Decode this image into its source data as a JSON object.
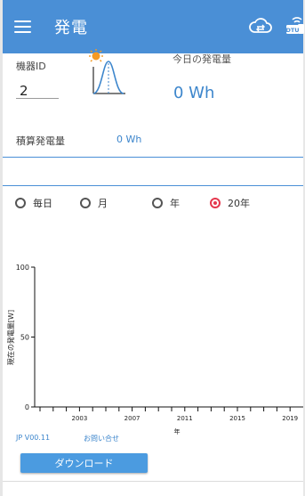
{
  "appbar": {
    "title": "発電",
    "menu_icon": "hamburger-menu-icon",
    "cloud_icon": "cloud-sync-icon",
    "dtu_icon": "dtu-wifi-icon",
    "dtu_text": "DTU",
    "color": "#4a8fd6"
  },
  "device": {
    "label": "機器ID",
    "value": "2"
  },
  "solar_icon": "solar-curve-icon",
  "today": {
    "label": "今日の発電量",
    "value": "0 Wh"
  },
  "total": {
    "label": "積算発電量",
    "value": "0 Wh"
  },
  "period": {
    "options": [
      "毎日",
      "月",
      "年",
      "20年"
    ],
    "selected": "20年"
  },
  "chart_data": {
    "type": "bar",
    "ylabel": "現在の発電量[W]",
    "xlabel": "年",
    "ylim": [
      0,
      100
    ],
    "yticks": [
      0,
      50,
      100
    ],
    "xticks": [
      "2003",
      "2007",
      "2011",
      "2015",
      "2019"
    ],
    "x": [],
    "values": [],
    "grid": false
  },
  "footer": {
    "version": "JP V00.11",
    "contact": "お問い合せ",
    "download_label": "ダウンロード"
  },
  "colors": {
    "accent": "#4a8fd6",
    "value_text": "#3d86cc",
    "selected_radio": "#e5374d"
  }
}
